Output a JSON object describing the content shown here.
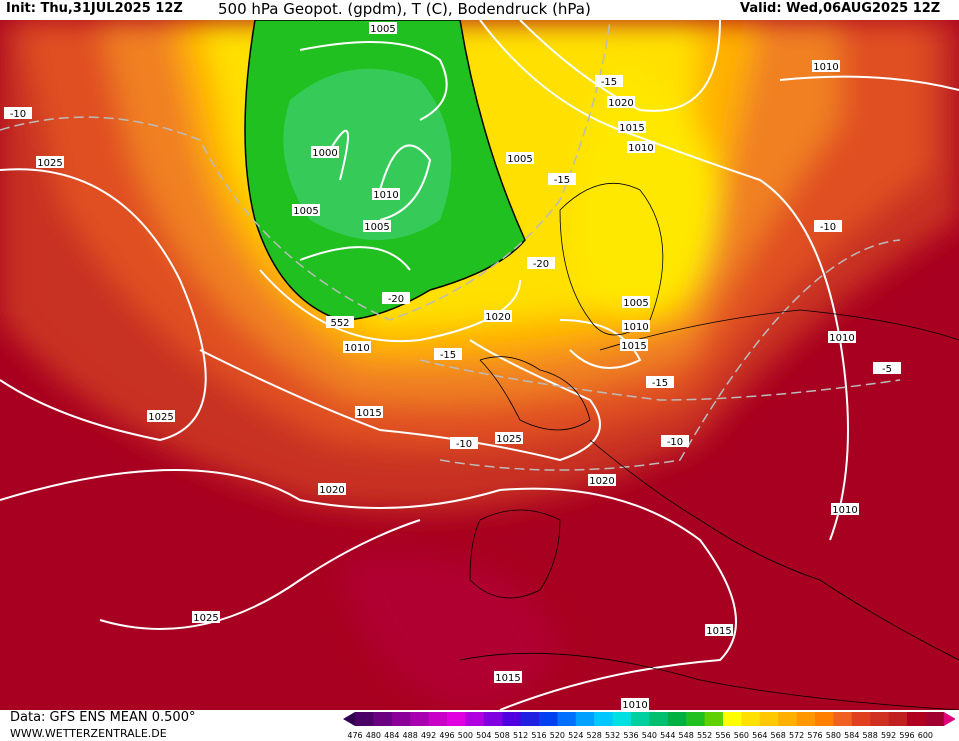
{
  "header": {
    "init": "Init: Thu,31JUL2025 12Z",
    "title": "500 hPa Geopot. (gpdm), T (C), Bodendruck (hPa)",
    "valid": "Valid: Wed,06AUG2025 12Z"
  },
  "footer": {
    "data_source": "Data: GFS ENS MEAN 0.500°",
    "website": "WWW.WETTERZENTRALE.DE"
  },
  "colorbar": {
    "labels": [
      476,
      480,
      484,
      488,
      492,
      496,
      500,
      504,
      508,
      512,
      516,
      520,
      524,
      528,
      532,
      536,
      540,
      544,
      548,
      552,
      556,
      560,
      564,
      568,
      572,
      576,
      580,
      584,
      588,
      592,
      596,
      600
    ],
    "colors": [
      "#4b0068",
      "#6a0080",
      "#8a0098",
      "#a800b0",
      "#c800c8",
      "#e000e0",
      "#b000e0",
      "#8000e0",
      "#5000e0",
      "#2020e0",
      "#0040f0",
      "#0070ff",
      "#00a0ff",
      "#00c8ff",
      "#00e0e0",
      "#00d0a0",
      "#00c070",
      "#00b040",
      "#20c020",
      "#60d000",
      "#ffff00",
      "#ffe000",
      "#ffc800",
      "#ffb000",
      "#ff9800",
      "#ff8000",
      "#f06020",
      "#e04020",
      "#d03020",
      "#c02020",
      "#b00020",
      "#a00030"
    ]
  },
  "map": {
    "contour_labels": [
      1005,
      1000,
      1010,
      1005,
      1005,
      -20,
      552,
      1010,
      1020,
      -15,
      1015,
      -10,
      1025,
      1020,
      1020,
      1025,
      1025,
      -10,
      1025,
      1015,
      1010,
      1015,
      1010,
      1010,
      -5,
      -10,
      1010,
      -15,
      1020,
      1015,
      1010,
      1005,
      -15,
      -20,
      1005,
      1010,
      1015,
      -15,
      -10
    ]
  }
}
